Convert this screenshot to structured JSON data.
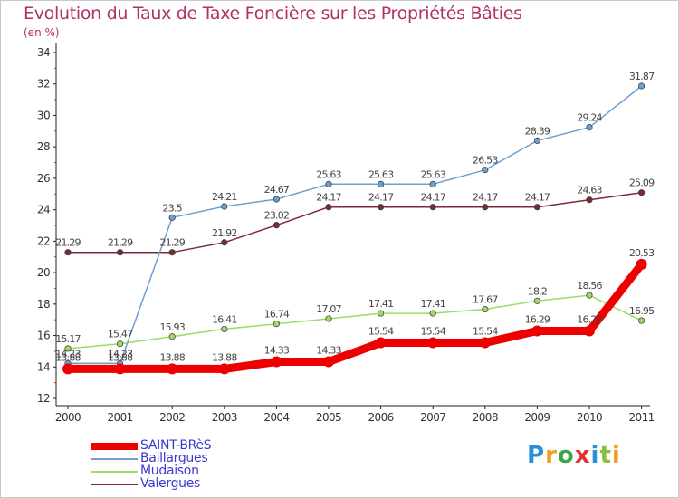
{
  "title": "Evolution du Taux de Taxe Foncière sur les Propriétés Bâties",
  "subtitle": "(en %)",
  "logo": "Proxiti",
  "chart_data": {
    "type": "line",
    "x": [
      "2000",
      "2001",
      "2002",
      "2003",
      "2004",
      "2005",
      "2006",
      "2007",
      "2008",
      "2009",
      "2010",
      "2011"
    ],
    "ylim": [
      12,
      34
    ],
    "yticks": [
      12,
      14,
      16,
      18,
      20,
      22,
      24,
      26,
      28,
      30,
      32,
      34
    ],
    "grid": false,
    "legend_position": "bottom-left",
    "series": [
      {
        "name": "SAINT-BRèS",
        "color": "#ee0000",
        "emphasis": true,
        "values": [
          13.88,
          13.88,
          13.88,
          13.88,
          14.33,
          14.33,
          15.54,
          15.54,
          15.54,
          16.29,
          16.29,
          20.53
        ],
        "labels": [
          "13.88",
          "13.88",
          "13.88",
          "13.88",
          "14.33",
          "14.33",
          "15.54",
          "15.54",
          "15.54",
          "16.29",
          "16.29",
          "20.53"
        ]
      },
      {
        "name": "Baillargues",
        "color": "#6f9fcf",
        "emphasis": false,
        "values": [
          14.23,
          14.23,
          23.5,
          24.21,
          24.67,
          25.63,
          25.63,
          25.63,
          26.53,
          28.39,
          29.24,
          31.87
        ],
        "labels": [
          "14.23",
          "14.23",
          "23.5",
          "24.21",
          "24.67",
          "25.63",
          "25.63",
          "25.63",
          "26.53",
          "28.39",
          "29.24",
          "31.87"
        ]
      },
      {
        "name": "Mudaison",
        "color": "#99dd66",
        "emphasis": false,
        "values": [
          15.17,
          15.47,
          15.93,
          16.41,
          16.74,
          17.07,
          17.41,
          17.41,
          17.67,
          18.2,
          18.56,
          16.95
        ],
        "labels": [
          "15.17",
          "15.47",
          "15.93",
          "16.41",
          "16.74",
          "17.07",
          "17.41",
          "17.41",
          "17.67",
          "18.2",
          "18.56",
          "16.95"
        ]
      },
      {
        "name": "Valergues",
        "color": "#7a2a33",
        "emphasis": false,
        "values": [
          21.29,
          21.29,
          21.29,
          21.92,
          23.02,
          24.17,
          24.17,
          24.17,
          24.17,
          24.17,
          24.63,
          25.09
        ],
        "labels": [
          "21.29",
          "21.29",
          "21.29",
          "21.92",
          "23.02",
          "24.17",
          "24.17",
          "24.17",
          "24.17",
          "24.17",
          "24.63",
          "25.09"
        ]
      }
    ]
  }
}
